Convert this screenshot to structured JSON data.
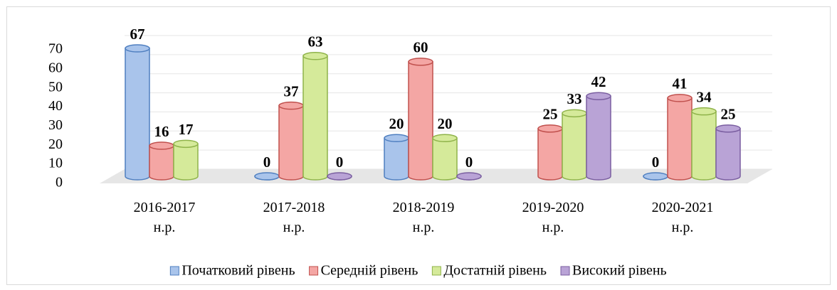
{
  "chart_data": {
    "type": "bar3d",
    "categories": [
      "2016-2017\nн.р.",
      "2017-2018\nн.р.",
      "2018-2019\nн.р.",
      "2019-2020\nн.р.",
      "2020-2021\nн.р."
    ],
    "series": [
      {
        "name": "Початковий рівень",
        "color": "#a9c4eb",
        "stroke": "#4f7fc0",
        "values": [
          67,
          0,
          20,
          null,
          0
        ]
      },
      {
        "name": "Середній рівень",
        "color": "#f4a6a4",
        "stroke": "#c0504d",
        "values": [
          16,
          37,
          60,
          25,
          41
        ]
      },
      {
        "name": "Достатній рівень",
        "color": "#d5ea9a",
        "stroke": "#8fb34a",
        "values": [
          17,
          63,
          20,
          33,
          34
        ]
      },
      {
        "name": "Високий рівень",
        "color": "#b9a3d6",
        "stroke": "#7a5ea0",
        "values": [
          null,
          0,
          0,
          42,
          25
        ]
      }
    ],
    "ylim": [
      0,
      70
    ],
    "yticks": [
      0,
      10,
      20,
      30,
      40,
      50,
      60,
      70
    ],
    "grid": true,
    "legend": "bottom"
  }
}
